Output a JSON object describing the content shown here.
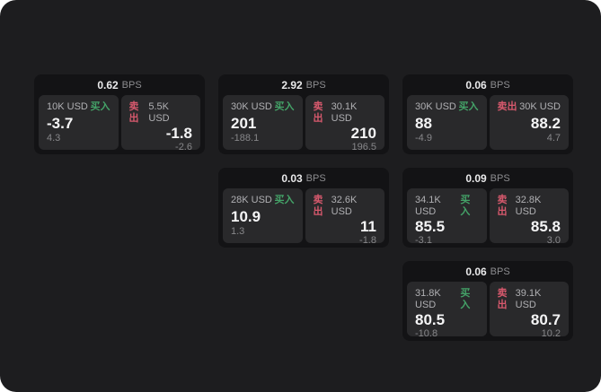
{
  "app": {
    "bps_unit": "BPS",
    "buy_label": "买入",
    "sell_label": "卖出"
  },
  "colors": {
    "page_background": "#1d1d1f",
    "card_background": "#131315",
    "panel_background": "#29292b",
    "buy_green": "#44a368",
    "sell_red": "#d7596d",
    "value_white": "#f5f5f6",
    "muted_gray": "#87878a"
  },
  "cards": [
    {
      "bps": "0.62",
      "buy": {
        "amount": "10K USD",
        "value": "-3.7",
        "delta": "4.3"
      },
      "sell": {
        "amount": "5.5K USD",
        "value": "-1.8",
        "delta": "-2.6"
      }
    },
    {
      "bps": "2.92",
      "buy": {
        "amount": "30K USD",
        "value": "201",
        "delta": "-188.1"
      },
      "sell": {
        "amount": "30.1K USD",
        "value": "210",
        "delta": "196.5"
      }
    },
    {
      "bps": "0.06",
      "buy": {
        "amount": "30K USD",
        "value": "88",
        "delta": "-4.9"
      },
      "sell": {
        "amount": "30K USD",
        "value": "88.2",
        "delta": "4.7"
      }
    },
    {
      "bps": "0.03",
      "buy": {
        "amount": "28K USD",
        "value": "10.9",
        "delta": "1.3"
      },
      "sell": {
        "amount": "32.6K USD",
        "value": "11",
        "delta": "-1.8"
      }
    },
    {
      "bps": "0.09",
      "buy": {
        "amount": "34.1K USD",
        "value": "85.5",
        "delta": "-3.1"
      },
      "sell": {
        "amount": "32.8K USD",
        "value": "85.8",
        "delta": "3.0"
      }
    },
    {
      "bps": "0.06",
      "buy": {
        "amount": "31.8K USD",
        "value": "80.5",
        "delta": "-10.8"
      },
      "sell": {
        "amount": "39.1K USD",
        "value": "80.7",
        "delta": "10.2"
      }
    }
  ]
}
